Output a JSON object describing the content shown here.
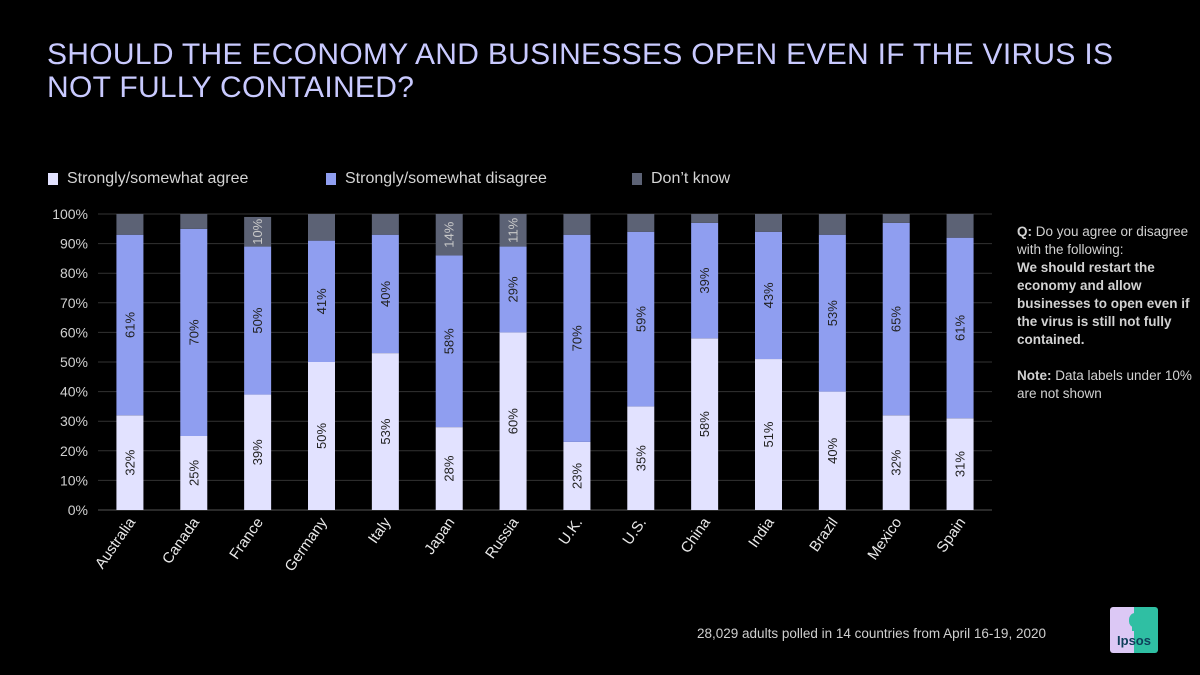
{
  "title": "SHOULD THE ECONOMY AND BUSINESSES OPEN EVEN IF THE VIRUS IS NOT FULLY CONTAINED?",
  "colors": {
    "agree": "#e2e2ff",
    "disagree": "#8f9ef0",
    "dont_know": "#5c6275",
    "title": "#c9caff",
    "background": "#000000"
  },
  "legend": [
    {
      "label": "Strongly/somewhat agree",
      "color": "#e2e2ff"
    },
    {
      "label": "Strongly/somewhat disagree",
      "color": "#8f9ef0"
    },
    {
      "label": "Don’t know",
      "color": "#5c6275"
    }
  ],
  "chart_data": {
    "type": "bar",
    "stacked": true,
    "orientation": "vertical",
    "title": "SHOULD THE ECONOMY AND BUSINESSES OPEN EVEN IF THE VIRUS IS NOT FULLY CONTAINED?",
    "xlabel": "",
    "ylabel": "",
    "ylim": [
      0,
      100
    ],
    "yticks": [
      "0%",
      "10%",
      "20%",
      "30%",
      "40%",
      "50%",
      "60%",
      "70%",
      "80%",
      "90%",
      "100%"
    ],
    "grid": true,
    "legend_position": "top-left",
    "categories": [
      "Australia",
      "Canada",
      "France",
      "Germany",
      "Italy",
      "Japan",
      "Russia",
      "U.K.",
      "U.S.",
      "China",
      "India",
      "Brazil",
      "Mexico",
      "Spain"
    ],
    "series": [
      {
        "name": "Strongly/somewhat agree",
        "values": [
          32,
          25,
          39,
          50,
          53,
          28,
          60,
          23,
          35,
          58,
          51,
          40,
          32,
          31
        ]
      },
      {
        "name": "Strongly/somewhat disagree",
        "values": [
          61,
          70,
          50,
          41,
          40,
          58,
          29,
          70,
          59,
          39,
          43,
          53,
          65,
          61
        ]
      },
      {
        "name": "Don’t know",
        "values": [
          7,
          5,
          10,
          9,
          7,
          14,
          11,
          7,
          6,
          3,
          6,
          7,
          3,
          8
        ]
      }
    ],
    "label_threshold": 10,
    "annotations": [
      "Data labels under 10% are not shown"
    ]
  },
  "side_note": {
    "q_label": "Q:",
    "q_text": " Do you agree or disagree with the following:",
    "statement": "We should restart the economy and allow businesses to open even if the virus is still not fully contained.",
    "note_label": "Note:",
    "note_text": " Data labels under 10% are not shown"
  },
  "footer": "28,029 adults polled in 14 countries from April 16-19, 2020",
  "logo": {
    "text": "Ipsos"
  }
}
